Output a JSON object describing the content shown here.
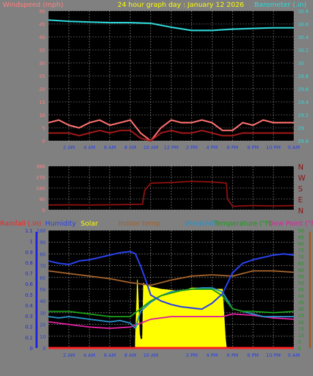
{
  "window": {
    "title": "24 hour graph day : January 12 2026"
  },
  "colors": {
    "background": "#808080",
    "plot_bg": "#000000",
    "grid": "#a0a0a0",
    "wind_label": "#ff8080",
    "wind_avg": "#a01818",
    "wind_gust": "#ff7070",
    "barometer": "#30d8d8",
    "direction": "#8b1010",
    "rain": "#ff2020",
    "humidity": "#2840e8",
    "solar": "#ffff00",
    "indoor": "#a0602a",
    "windchill": "#2890c8",
    "temperature": "#1a9a1a",
    "dewpoint": "#e020a0",
    "rain_axis": "#2020e0"
  },
  "chart_data": [
    {
      "id": "wind-barometer",
      "type": "line",
      "title": "24 hour graph day : January 12 2026",
      "left_axis_label": "Windspeed (mph)",
      "right_axis_label": "Barometer (.in)",
      "left_ticks": [
        "0",
        "5",
        "10",
        "15",
        "20",
        "25",
        "30",
        "35",
        "40",
        "45",
        "50"
      ],
      "right_ticks": [
        "28.8",
        "29",
        "29.2",
        "29.4",
        "29.6",
        "29.8",
        "30",
        "30.2",
        "30.4",
        "30.6",
        "30.8"
      ],
      "x_ticks": [
        "2 AM",
        "4 AM",
        "6 AM",
        "8 AM",
        "10 AM",
        "12 PM",
        "2 PM",
        "4 PM",
        "6 PM",
        "8 PM",
        "10 PM",
        "0 AM"
      ],
      "ylim_left": [
        0,
        50
      ],
      "ylim_right": [
        28.8,
        30.8
      ],
      "grid": true,
      "series": [
        {
          "name": "Windspeed (mph)",
          "role": "avg",
          "x_hours": [
            0,
            1,
            2,
            3,
            4,
            5,
            6,
            7,
            8,
            9,
            10,
            11,
            12,
            13,
            14,
            15,
            16,
            17,
            18,
            19,
            20,
            21,
            22,
            23,
            24
          ],
          "values": [
            3,
            3,
            3,
            2,
            3,
            4,
            3,
            4,
            4,
            1,
            0,
            3,
            4,
            3,
            3,
            4,
            3,
            2,
            2,
            3,
            3,
            3,
            3,
            3,
            3
          ]
        },
        {
          "name": "Wind gust (mph)",
          "role": "gust",
          "x_hours": [
            0,
            1,
            2,
            3,
            4,
            5,
            6,
            7,
            8,
            9,
            10,
            11,
            12,
            13,
            14,
            15,
            16,
            17,
            18,
            19,
            20,
            21,
            22,
            23,
            24
          ],
          "values": [
            7,
            8,
            6,
            5,
            7,
            8,
            6,
            7,
            8,
            3,
            0,
            5,
            8,
            7,
            7,
            8,
            7,
            4,
            4,
            7,
            6,
            8,
            7,
            7,
            7
          ]
        },
        {
          "name": "Barometer (.in)",
          "x_hours": [
            0,
            2,
            4,
            6,
            8,
            10,
            12,
            14,
            16,
            17,
            18,
            20,
            22,
            24
          ],
          "values": [
            30.66,
            30.64,
            30.63,
            30.62,
            30.62,
            30.61,
            30.55,
            30.5,
            30.5,
            30.51,
            30.52,
            30.53,
            30.54,
            30.54
          ]
        }
      ]
    },
    {
      "id": "wind-direction",
      "type": "line",
      "left_ticks": [
        "0",
        "90",
        "180",
        "270",
        "360"
      ],
      "right_ticks": [
        "N",
        "E",
        "S",
        "W",
        "N"
      ],
      "ylim": [
        0,
        360
      ],
      "grid": true,
      "series": [
        {
          "name": "Wind direction",
          "x_hours": [
            0,
            2,
            4,
            6,
            8,
            8.1,
            9.2,
            9.4,
            10,
            12,
            14,
            16,
            17.4,
            17.5,
            18,
            20,
            22,
            24
          ],
          "values": [
            40,
            42,
            40,
            42,
            45,
            45,
            46,
            160,
            220,
            225,
            235,
            230,
            220,
            90,
            30,
            35,
            32,
            35
          ]
        }
      ]
    },
    {
      "id": "temperature-humidity",
      "type": "line",
      "legend": [
        "Rainfall (.in)",
        "Humidity",
        "Solar",
        "Indoor temp",
        "Windchill",
        "Temperature (°F)",
        "Dew Point (°F)"
      ],
      "rain_ticks": [
        "0",
        "0.1",
        "0.2",
        "0.3",
        "0.4",
        "0.5",
        "0.6",
        "0.7",
        "0.8",
        "0.9",
        "1",
        "1.1"
      ],
      "humidity_ticks": [
        "0",
        "10",
        "20",
        "30",
        "40",
        "50",
        "60",
        "70",
        "80",
        "90",
        "100"
      ],
      "temp_ticks": [
        "0",
        "5",
        "10",
        "15",
        "20",
        "25",
        "30",
        "35",
        "40",
        "45",
        "50",
        "55",
        "60",
        "65",
        "70",
        "75",
        "80",
        "85",
        "90"
      ],
      "x_ticks": [
        "2 AM",
        "4 AM",
        "6 AM",
        "8 AM",
        "10 AM",
        "2 PM",
        "4 PM",
        "6 PM",
        "8 PM",
        "10 PM",
        "0 AM"
      ],
      "ylim_humidity": [
        0,
        100
      ],
      "ylim_temp": [
        0,
        90
      ],
      "ylim_rain": [
        0,
        1.1
      ],
      "grid": true,
      "series": [
        {
          "name": "Humidity",
          "x_hours": [
            0,
            1,
            2,
            3,
            4,
            5,
            6,
            7,
            8,
            8.5,
            9,
            9.5,
            10,
            11,
            12,
            13,
            14,
            15,
            16,
            17,
            18,
            19,
            20,
            21,
            22,
            23,
            24
          ],
          "values": [
            74,
            72,
            71,
            74,
            75,
            77,
            79,
            81,
            82,
            80,
            70,
            58,
            45,
            40,
            37,
            35,
            34,
            33,
            38,
            46,
            64,
            72,
            75,
            77,
            79,
            80,
            79
          ]
        },
        {
          "name": "Solar",
          "x_hours": [
            8.5,
            8.7,
            8.9,
            9,
            9.2,
            9.3,
            9.4,
            10,
            11,
            12,
            13,
            14,
            15,
            16,
            17,
            17.3,
            17.4
          ],
          "values": [
            5,
            58,
            12,
            7,
            8,
            55,
            54,
            52,
            50,
            49,
            48,
            51,
            51,
            50,
            50,
            8,
            0
          ]
        },
        {
          "name": "Indoor temp",
          "x_hours": [
            0,
            2,
            4,
            6,
            8,
            10,
            12,
            14,
            16,
            18,
            20,
            22,
            24
          ],
          "values": [
            59,
            57,
            55,
            53,
            50,
            48,
            52,
            55,
            56,
            55,
            59,
            59,
            58
          ]
        },
        {
          "name": "Windchill",
          "x_hours": [
            0,
            1,
            2,
            3,
            4,
            5,
            6,
            7,
            8,
            8.5,
            9,
            10,
            11,
            12,
            13,
            14,
            15,
            16,
            17,
            18,
            19,
            20,
            21,
            22,
            23,
            24
          ],
          "values": [
            24,
            23,
            24,
            23,
            22,
            21,
            20,
            21,
            19,
            15,
            28,
            35,
            40,
            43,
            44,
            45,
            46,
            46,
            43,
            30,
            28,
            26,
            24,
            24,
            24,
            24
          ]
        },
        {
          "name": "Temperature (°F)",
          "x_hours": [
            0,
            2,
            4,
            6,
            8,
            9,
            10,
            11,
            12,
            13,
            14,
            15,
            16,
            17,
            18,
            19,
            20,
            22,
            24
          ],
          "values": [
            28,
            28,
            26,
            24,
            24,
            30,
            36,
            40,
            42,
            44,
            45,
            45,
            45,
            40,
            30,
            28,
            28,
            27,
            28
          ]
        },
        {
          "name": "Dew Point (°F)",
          "x_hours": [
            0,
            2,
            4,
            6,
            8,
            10,
            12,
            14,
            16,
            17,
            18,
            20,
            22,
            24
          ],
          "values": [
            20,
            18,
            16,
            15,
            16,
            22,
            24,
            24,
            24,
            24,
            26,
            25,
            23,
            22
          ]
        },
        {
          "name": "Rainfall (.in)",
          "x_hours": [
            0,
            24
          ],
          "values": [
            0,
            0
          ]
        }
      ]
    }
  ]
}
